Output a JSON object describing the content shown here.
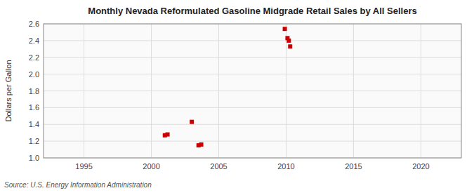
{
  "chart_data": {
    "type": "scatter",
    "title": "Monthly Nevada Reformulated Gasoline Midgrade Retail Sales by All Sellers",
    "ylabel": "Dollars per Gallon",
    "source": "Source: U.S. Energy Information Administration",
    "x": [
      2001.0,
      2001.2,
      2003.0,
      2003.5,
      2003.7,
      2009.9,
      2010.1,
      2010.2,
      2010.3
    ],
    "values": [
      1.27,
      1.28,
      1.43,
      1.15,
      1.16,
      2.54,
      2.43,
      2.4,
      2.33
    ],
    "color": "#cc0000",
    "marker": "square",
    "xlim": [
      1992,
      2023
    ],
    "ylim": [
      1.0,
      2.6
    ],
    "xticks": [
      1995,
      2000,
      2005,
      2010,
      2015,
      2020
    ],
    "yticks": [
      {
        "value": 1.0,
        "label": "1.0"
      },
      1.2,
      1.4,
      1.6,
      1.8,
      {
        "value": 2.0,
        "label": "2.0"
      },
      2.2,
      2.4,
      2.6
    ],
    "grid": true
  }
}
